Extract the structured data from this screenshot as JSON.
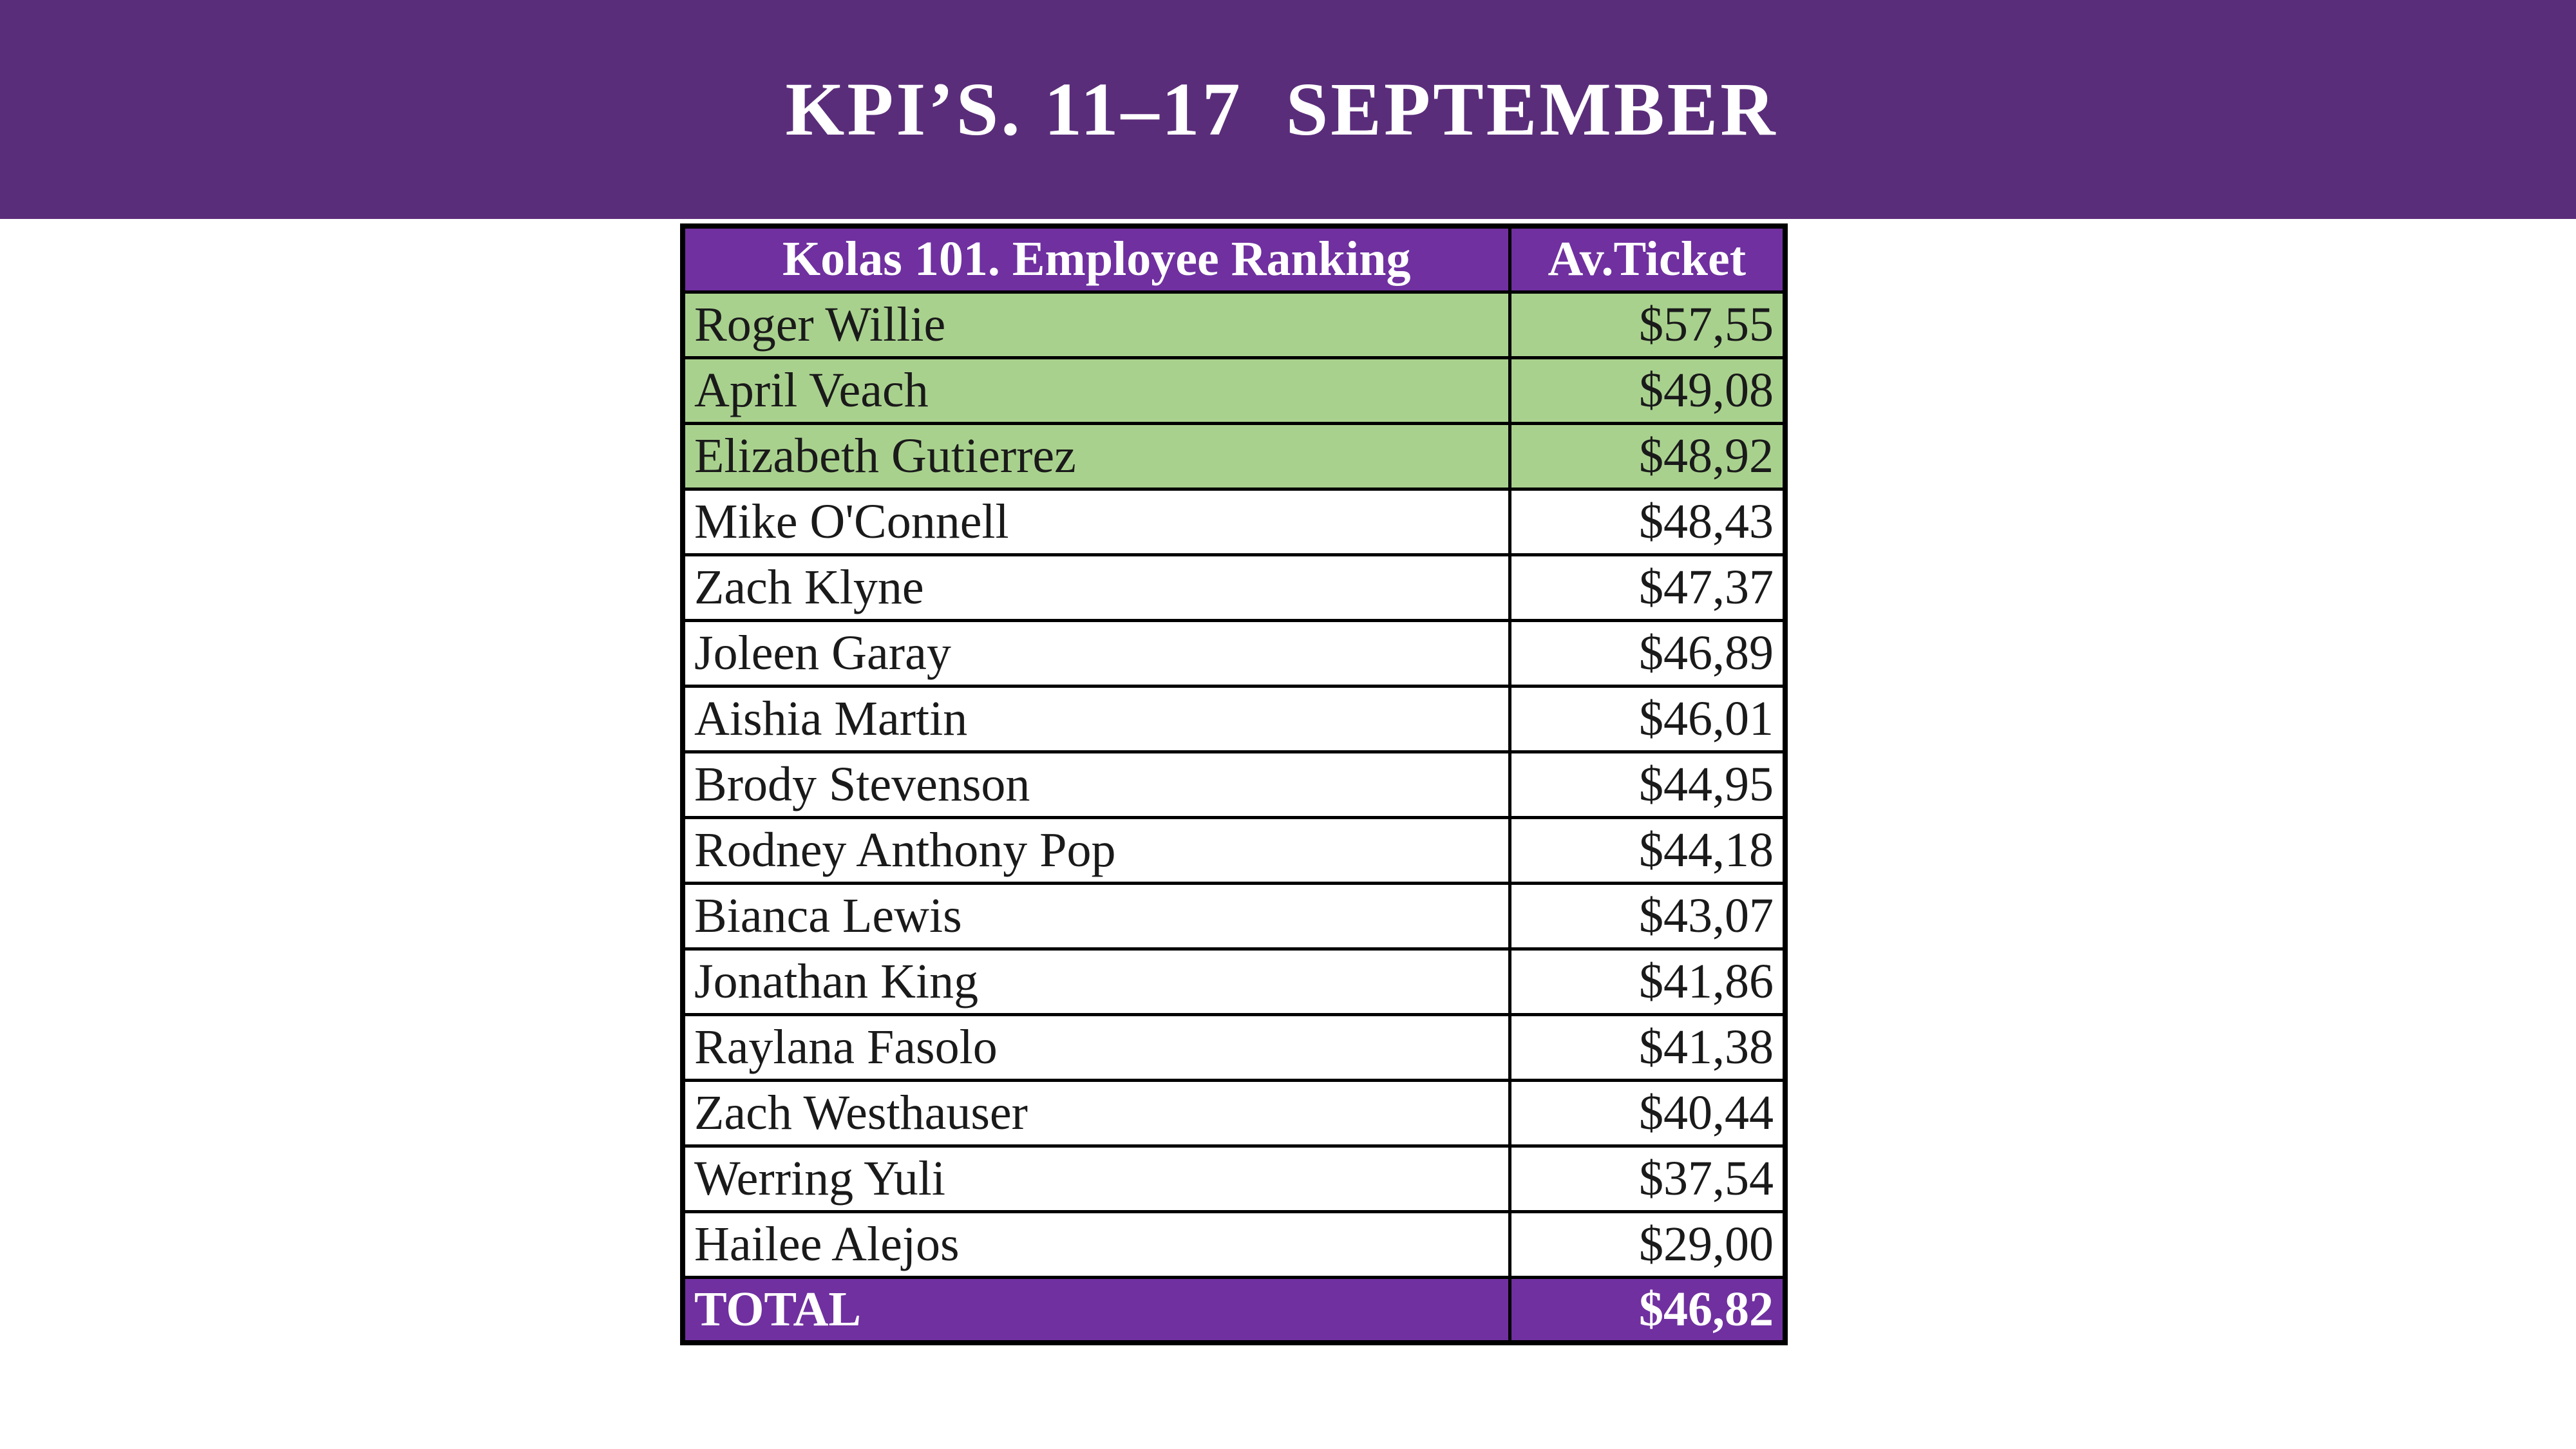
{
  "header": {
    "title": "KPI’S. 11–17  SEPTEMBER"
  },
  "table": {
    "columns": {
      "name": "Kolas 101. Employee Ranking",
      "ticket": "Av.Ticket"
    },
    "rows": [
      {
        "name": "Roger Willie",
        "ticket": "$57,55",
        "highlight": true
      },
      {
        "name": "April Veach",
        "ticket": "$49,08",
        "highlight": true
      },
      {
        "name": "Elizabeth Gutierrez",
        "ticket": "$48,92",
        "highlight": true
      },
      {
        "name": "Mike O'Connell",
        "ticket": "$48,43",
        "highlight": false
      },
      {
        "name": "Zach Klyne",
        "ticket": "$47,37",
        "highlight": false
      },
      {
        "name": "Joleen Garay",
        "ticket": "$46,89",
        "highlight": false
      },
      {
        "name": "Aishia Martin",
        "ticket": "$46,01",
        "highlight": false
      },
      {
        "name": "Brody Stevenson",
        "ticket": "$44,95",
        "highlight": false
      },
      {
        "name": "Rodney Anthony Pop",
        "ticket": "$44,18",
        "highlight": false
      },
      {
        "name": "Bianca Lewis",
        "ticket": "$43,07",
        "highlight": false
      },
      {
        "name": "Jonathan King",
        "ticket": "$41,86",
        "highlight": false
      },
      {
        "name": "Raylana Fasolo",
        "ticket": "$41,38",
        "highlight": false
      },
      {
        "name": "Zach Westhauser",
        "ticket": "$40,44",
        "highlight": false
      },
      {
        "name": "Werring Yuli",
        "ticket": "$37,54",
        "highlight": false
      },
      {
        "name": "Hailee Alejos",
        "ticket": "$29,00",
        "highlight": false
      }
    ],
    "total": {
      "label": "TOTAL",
      "ticket": "$46,82"
    }
  },
  "colors": {
    "banner": "#5a2d7a",
    "header_row": "#7030a0",
    "top_rank_highlight": "#a9d18e"
  }
}
